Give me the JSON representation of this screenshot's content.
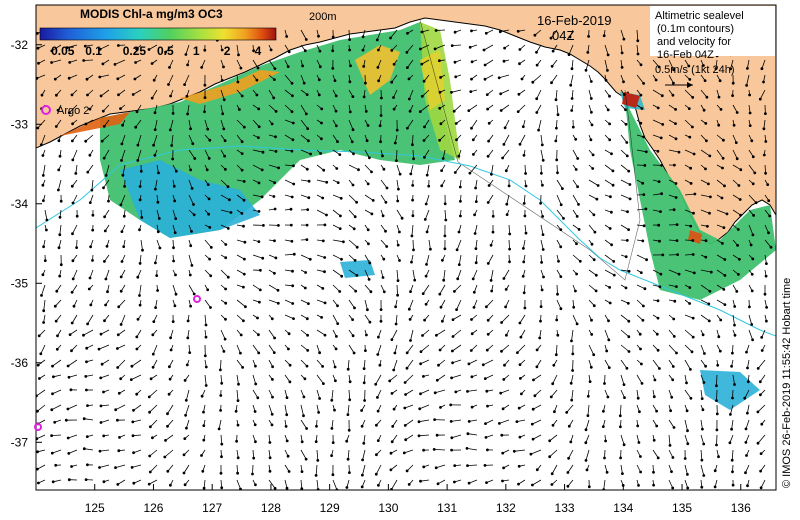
{
  "colorbar": {
    "title": "MODIS Chl-a mg/m3 OC3",
    "tick_labels": [
      "0.05",
      "0.1",
      "0.25",
      "0.5",
      "1",
      "2",
      "4"
    ],
    "colors": [
      "#1a1aa0",
      "#1f5fd6",
      "#1fa0e8",
      "#2ad0c0",
      "#50d060",
      "#a8e040",
      "#f0e030",
      "#f0a020",
      "#e05010",
      "#a01010"
    ]
  },
  "isobath_label": "200m",
  "date_label": "16-Feb-2019",
  "time_label": "04Z",
  "legend": {
    "line1": "Altimetric sealevel",
    "line2": "(0.1m contours)",
    "line3": "and velocity for",
    "line4": "16-Feb 04Z",
    "line5": "0.5m/s (1kt 24h)"
  },
  "argo_label": "Argo 2",
  "axes": {
    "lon_ticks": [
      "125",
      "126",
      "127",
      "128",
      "129",
      "130",
      "131",
      "132",
      "133",
      "134",
      "135",
      "136"
    ],
    "lat_ticks": [
      "-32",
      "-33",
      "-34",
      "-35",
      "-36",
      "-37"
    ],
    "lon_range": [
      124.0,
      136.6
    ],
    "lat_range": [
      -31.5,
      -37.6
    ]
  },
  "copyright": "© IMOS 26-Feb-2019 11:55:42 Hobart time",
  "colors": {
    "land": "#f8c89c",
    "shelf_line": "#30c8e0",
    "argo_marker": "#e020e0"
  }
}
